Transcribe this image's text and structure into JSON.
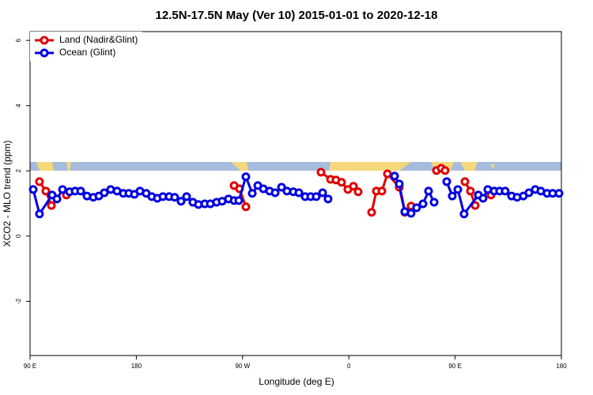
{
  "chart_data": {
    "type": "line",
    "title": "12.5N-17.5N May (Ver 10)   2015-01-01 to 2020-12-18",
    "xlabel": "Longitude (deg E)",
    "ylabel": "XCO2 - MLO trend (ppm)",
    "xlim": [
      90,
      540
    ],
    "ylim": [
      -3.66,
      6.27
    ],
    "xticks": [
      {
        "value": 90,
        "label": "90 E"
      },
      180,
      {
        "value": 270,
        "label": "90 W"
      },
      {
        "value": 360,
        "label": "0"
      },
      {
        "value": 450,
        "label": "90 E"
      },
      {
        "value": 540,
        "label": "180"
      }
    ],
    "yticks": [
      -2,
      0,
      2,
      4,
      6
    ],
    "legend": "top-left",
    "series": [
      {
        "name": "Land (Nadir&Glint)",
        "color": "#e00000",
        "x": [
          98.0,
          103.4,
          108.1,
          null,
          120.8,
          null,
          262.8,
          267.4,
          272.8,
          null,
          336.4,
          344.5,
          349.1,
          353.8,
          359.2,
          363.9,
          367.9,
          null,
          379.3,
          383.3,
          388.0,
          392.7,
          402.7,
          407.4,
          412.7,
          null,
          434.2,
          438.2,
          441.5,
          null,
          458.3,
          463.0,
          467.0,
          null,
          480.4
        ],
        "values": [
          1.67,
          1.38,
          0.94,
          null,
          1.26,
          null,
          1.55,
          1.45,
          0.9,
          null,
          1.96,
          1.74,
          1.72,
          1.65,
          1.43,
          1.53,
          1.36,
          null,
          0.73,
          1.38,
          1.38,
          1.91,
          1.5,
          0.73,
          0.92,
          null,
          2.01,
          2.08,
          2.01,
          null,
          1.67,
          1.38,
          0.94,
          null,
          1.26
        ]
      },
      {
        "name": "Ocean (Glint)",
        "color": "#0000e0",
        "x": [
          92.7,
          98.0,
          108.7,
          112.8,
          117.5,
          123.5,
          128.2,
          132.9,
          138.2,
          143.6,
          148.3,
          152.9,
          158.3,
          163.7,
          169.0,
          173.7,
          178.4,
          183.1,
          188.4,
          193.1,
          197.8,
          202.5,
          207.8,
          212.5,
          217.9,
          222.6,
          227.9,
          232.6,
          238.0,
          242.7,
          248.0,
          252.7,
          258.1,
          262.8,
          266.8,
          272.8,
          278.2,
          282.9,
          287.6,
          292.9,
          297.6,
          303.0,
          307.6,
          313.0,
          317.7,
          323.0,
          327.7,
          332.4,
          337.8,
          342.4,
          null,
          398.7,
          402.7,
          407.4,
          412.7,
          417.4,
          422.8,
          427.5,
          432.2,
          null,
          442.9,
          447.6,
          452.3,
          457.6,
          469.7,
          473.7,
          477.7,
          483.1,
          487.7,
          492.4,
          497.8,
          502.5,
          507.8,
          512.5,
          517.9,
          522.6,
          527.9,
          532.6,
          538.0
        ],
        "values": [
          1.43,
          0.68,
          1.26,
          1.14,
          1.43,
          1.36,
          1.38,
          1.38,
          1.23,
          1.19,
          1.23,
          1.33,
          1.43,
          1.38,
          1.31,
          1.31,
          1.28,
          1.38,
          1.31,
          1.21,
          1.16,
          1.21,
          1.21,
          1.19,
          1.07,
          1.21,
          1.04,
          0.97,
          0.99,
          0.99,
          1.04,
          1.07,
          1.14,
          1.09,
          1.09,
          1.82,
          1.31,
          1.55,
          1.45,
          1.38,
          1.33,
          1.5,
          1.38,
          1.36,
          1.33,
          1.21,
          1.21,
          1.21,
          1.33,
          1.14,
          null,
          1.84,
          1.6,
          0.75,
          0.7,
          0.87,
          0.99,
          1.38,
          1.04,
          null,
          1.67,
          1.23,
          1.43,
          0.68,
          1.26,
          1.16,
          1.43,
          1.38,
          1.38,
          1.38,
          1.23,
          1.19,
          1.23,
          1.33,
          1.43,
          1.38,
          1.31,
          1.31,
          1.31
        ]
      }
    ]
  }
}
